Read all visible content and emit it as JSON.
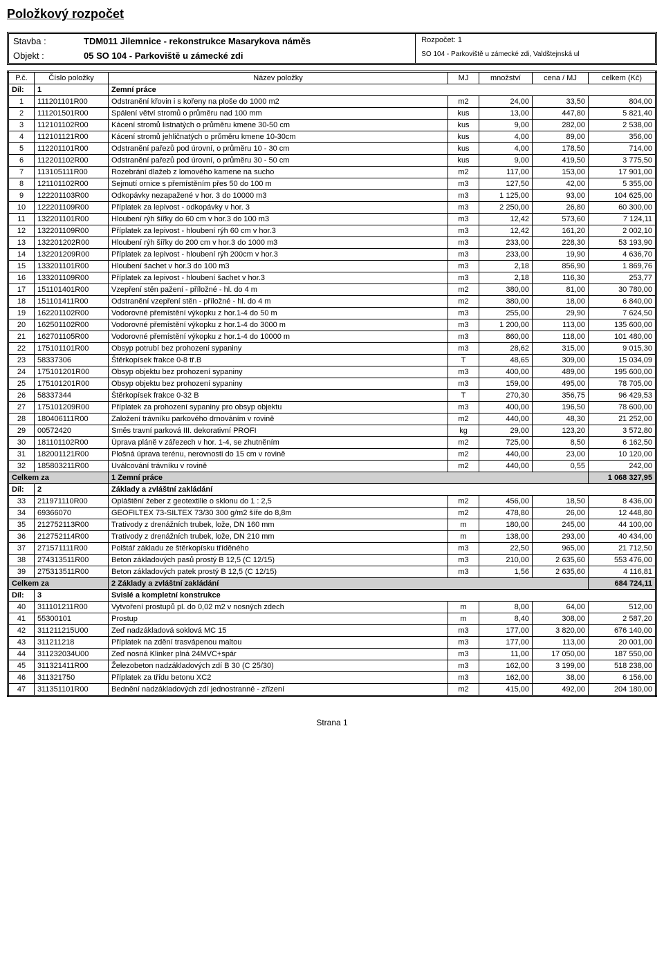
{
  "title": "Položkový rozpočet",
  "header": {
    "stavba_label": "Stavba :",
    "stavba_value": "TDM011 Jilemnice - rekonstrukce Masarykova náměs",
    "objekt_label": "Objekt :",
    "objekt_value": "05 SO 104 - Parkoviště u zámecké zdi",
    "rozpocet": "Rozpočet: 1",
    "so_text": "SO 104 - Parkoviště u zámecké zdi, Valdštejnská ul"
  },
  "columns": {
    "pc": "P.č.",
    "cp": "Číslo položky",
    "naz": "Název položky",
    "mj": "MJ",
    "mn": "množství",
    "cena": "cena / MJ",
    "cel": "celkem (Kč)"
  },
  "sections": [
    {
      "dil": "1",
      "dil_label": "Díl:",
      "name": "Zemní práce",
      "items": [
        {
          "pc": "1",
          "cp": "111201101R00",
          "naz": "Odstranění křovin i s kořeny na ploše do 1000 m2",
          "mj": "m2",
          "mn": "24,00",
          "cena": "33,50",
          "cel": "804,00"
        },
        {
          "pc": "2",
          "cp": "111201501R00",
          "naz": "Spálení větví stromů o průměru nad 100 mm",
          "mj": "kus",
          "mn": "13,00",
          "cena": "447,80",
          "cel": "5 821,40"
        },
        {
          "pc": "3",
          "cp": "112101102R00",
          "naz": "Kácení stromů listnatých o průměru kmene 30-50 cm",
          "mj": "kus",
          "mn": "9,00",
          "cena": "282,00",
          "cel": "2 538,00"
        },
        {
          "pc": "4",
          "cp": "112101121R00",
          "naz": "Kácení stromů jehličnatých o průměru kmene 10-30cm",
          "mj": "kus",
          "mn": "4,00",
          "cena": "89,00",
          "cel": "356,00"
        },
        {
          "pc": "5",
          "cp": "112201101R00",
          "naz": "Odstranění pařezů pod úrovní, o průměru 10 - 30 cm",
          "mj": "kus",
          "mn": "4,00",
          "cena": "178,50",
          "cel": "714,00"
        },
        {
          "pc": "6",
          "cp": "112201102R00",
          "naz": "Odstranění pařezů pod úrovní, o průměru 30 - 50 cm",
          "mj": "kus",
          "mn": "9,00",
          "cena": "419,50",
          "cel": "3 775,50"
        },
        {
          "pc": "7",
          "cp": "113105111R00",
          "naz": "Rozebrání dlažeb z lomového kamene na sucho",
          "mj": "m2",
          "mn": "117,00",
          "cena": "153,00",
          "cel": "17 901,00"
        },
        {
          "pc": "8",
          "cp": "121101102R00",
          "naz": "Sejmutí ornice s přemístěním přes 50 do 100 m",
          "mj": "m3",
          "mn": "127,50",
          "cena": "42,00",
          "cel": "5 355,00"
        },
        {
          "pc": "9",
          "cp": "122201103R00",
          "naz": "Odkopávky nezapažené v hor. 3 do 10000 m3",
          "mj": "m3",
          "mn": "1 125,00",
          "cena": "93,00",
          "cel": "104 625,00"
        },
        {
          "pc": "10",
          "cp": "122201109R00",
          "naz": "Příplatek za lepivost - odkopávky v hor. 3",
          "mj": "m3",
          "mn": "2 250,00",
          "cena": "26,80",
          "cel": "60 300,00"
        },
        {
          "pc": "11",
          "cp": "132201101R00",
          "naz": "Hloubení rýh šířky do 60 cm v hor.3 do 100 m3",
          "mj": "m3",
          "mn": "12,42",
          "cena": "573,60",
          "cel": "7 124,11"
        },
        {
          "pc": "12",
          "cp": "132201109R00",
          "naz": "Příplatek za lepivost - hloubení rýh 60 cm v hor.3",
          "mj": "m3",
          "mn": "12,42",
          "cena": "161,20",
          "cel": "2 002,10"
        },
        {
          "pc": "13",
          "cp": "132201202R00",
          "naz": "Hloubení rýh šířky do 200 cm v hor.3 do 1000 m3",
          "mj": "m3",
          "mn": "233,00",
          "cena": "228,30",
          "cel": "53 193,90"
        },
        {
          "pc": "14",
          "cp": "132201209R00",
          "naz": "Příplatek za lepivost - hloubení rýh 200cm v hor.3",
          "mj": "m3",
          "mn": "233,00",
          "cena": "19,90",
          "cel": "4 636,70"
        },
        {
          "pc": "15",
          "cp": "133201101R00",
          "naz": "Hloubení šachet v hor.3 do 100 m3",
          "mj": "m3",
          "mn": "2,18",
          "cena": "856,90",
          "cel": "1 869,76"
        },
        {
          "pc": "16",
          "cp": "133201109R00",
          "naz": "Příplatek za lepivost - hloubení šachet v hor.3",
          "mj": "m3",
          "mn": "2,18",
          "cena": "116,30",
          "cel": "253,77"
        },
        {
          "pc": "17",
          "cp": "151101401R00",
          "naz": "Vzepření stěn pažení - příložné - hl. do 4 m",
          "mj": "m2",
          "mn": "380,00",
          "cena": "81,00",
          "cel": "30 780,00"
        },
        {
          "pc": "18",
          "cp": "151101411R00",
          "naz": "Odstranění vzepření stěn - příložné - hl. do 4 m",
          "mj": "m2",
          "mn": "380,00",
          "cena": "18,00",
          "cel": "6 840,00"
        },
        {
          "pc": "19",
          "cp": "162201102R00",
          "naz": "Vodorovné přemístění výkopku z hor.1-4 do 50 m",
          "mj": "m3",
          "mn": "255,00",
          "cena": "29,90",
          "cel": "7 624,50"
        },
        {
          "pc": "20",
          "cp": "162501102R00",
          "naz": "Vodorovné přemístění výkopku z hor.1-4 do 3000 m",
          "mj": "m3",
          "mn": "1 200,00",
          "cena": "113,00",
          "cel": "135 600,00"
        },
        {
          "pc": "21",
          "cp": "162701105R00",
          "naz": "Vodorovné přemístění výkopku z hor.1-4 do 10000 m",
          "mj": "m3",
          "mn": "860,00",
          "cena": "118,00",
          "cel": "101 480,00"
        },
        {
          "pc": "22",
          "cp": "175101101R00",
          "naz": "Obsyp potrubí bez prohození sypaniny",
          "mj": "m3",
          "mn": "28,62",
          "cena": "315,00",
          "cel": "9 015,30"
        },
        {
          "pc": "23",
          "cp": "58337306",
          "naz": "Štěrkopísek frakce 0-8 tř.B",
          "mj": "T",
          "mn": "48,65",
          "cena": "309,00",
          "cel": "15 034,09"
        },
        {
          "pc": "24",
          "cp": "175101201R00",
          "naz": "Obsyp objektu bez prohození sypaniny",
          "mj": "m3",
          "mn": "400,00",
          "cena": "489,00",
          "cel": "195 600,00"
        },
        {
          "pc": "25",
          "cp": "175101201R00",
          "naz": "Obsyp objektu bez prohození sypaniny",
          "mj": "m3",
          "mn": "159,00",
          "cena": "495,00",
          "cel": "78 705,00"
        },
        {
          "pc": "26",
          "cp": "58337344",
          "naz": "Štěrkopísek frakce 0-32 B",
          "mj": "T",
          "mn": "270,30",
          "cena": "356,75",
          "cel": "96 429,53"
        },
        {
          "pc": "27",
          "cp": "175101209R00",
          "naz": "Příplatek za prohození sypaniny pro obsyp objektu",
          "mj": "m3",
          "mn": "400,00",
          "cena": "196,50",
          "cel": "78 600,00"
        },
        {
          "pc": "28",
          "cp": "180406111R00",
          "naz": "Založení trávníku parkového drnováním v rovině",
          "mj": "m2",
          "mn": "440,00",
          "cena": "48,30",
          "cel": "21 252,00"
        },
        {
          "pc": "29",
          "cp": "00572420",
          "naz": "Směs travní parková III. dekorativní PROFI",
          "mj": "kg",
          "mn": "29,00",
          "cena": "123,20",
          "cel": "3 572,80"
        },
        {
          "pc": "30",
          "cp": "181101102R00",
          "naz": "Úprava pláně v zářezech v hor. 1-4, se zhutněním",
          "mj": "m2",
          "mn": "725,00",
          "cena": "8,50",
          "cel": "6 162,50"
        },
        {
          "pc": "31",
          "cp": "182001121R00",
          "naz": "Plošná úprava terénu, nerovnosti do 15 cm v rovině",
          "mj": "m2",
          "mn": "440,00",
          "cena": "23,00",
          "cel": "10 120,00"
        },
        {
          "pc": "32",
          "cp": "185803211R00",
          "naz": "Uválcování trávníku v rovině",
          "mj": "m2",
          "mn": "440,00",
          "cena": "0,55",
          "cel": "242,00"
        }
      ],
      "subtotal_label": "Celkem za",
      "subtotal_name": "1 Zemní práce",
      "subtotal": "1 068 327,95"
    },
    {
      "dil": "2",
      "dil_label": "Díl:",
      "name": "Základy a zvláštní zakládání",
      "items": [
        {
          "pc": "33",
          "cp": "211971110R00",
          "naz": "Opláštění žeber z geotextilie o sklonu do 1 : 2,5",
          "mj": "m2",
          "mn": "456,00",
          "cena": "18,50",
          "cel": "8 436,00"
        },
        {
          "pc": "34",
          "cp": "69366070",
          "naz": "GEOFILTEX 73-SILTEX 73/30 300 g/m2 šíře do 8,8m",
          "mj": "m2",
          "mn": "478,80",
          "cena": "26,00",
          "cel": "12 448,80"
        },
        {
          "pc": "35",
          "cp": "212752113R00",
          "naz": "Trativody z drenážních trubek, lože, DN 160 mm",
          "mj": "m",
          "mn": "180,00",
          "cena": "245,00",
          "cel": "44 100,00"
        },
        {
          "pc": "36",
          "cp": "212752114R00",
          "naz": "Trativody z drenážních trubek, lože, DN 210 mm",
          "mj": "m",
          "mn": "138,00",
          "cena": "293,00",
          "cel": "40 434,00"
        },
        {
          "pc": "37",
          "cp": "271571111R00",
          "naz": "Polštář základu ze štěrkopísku tříděného",
          "mj": "m3",
          "mn": "22,50",
          "cena": "965,00",
          "cel": "21 712,50"
        },
        {
          "pc": "38",
          "cp": "274313511R00",
          "naz": "Beton základových pasů prostý B 12,5 (C 12/15)",
          "mj": "m3",
          "mn": "210,00",
          "cena": "2 635,60",
          "cel": "553 476,00"
        },
        {
          "pc": "39",
          "cp": "275313511R00",
          "naz": "Beton základových patek prostý B 12,5 (C 12/15)",
          "mj": "m3",
          "mn": "1,56",
          "cena": "2 635,60",
          "cel": "4 116,81"
        }
      ],
      "subtotal_label": "Celkem za",
      "subtotal_name": "2 Základy a zvláštní zakládání",
      "subtotal": "684 724,11"
    },
    {
      "dil": "3",
      "dil_label": "Díl:",
      "name": "Svislé a kompletní konstrukce",
      "items": [
        {
          "pc": "40",
          "cp": "311101211R00",
          "naz": "Vytvoření prostupů pl. do 0,02 m2 v nosných zdech",
          "mj": "m",
          "mn": "8,00",
          "cena": "64,00",
          "cel": "512,00"
        },
        {
          "pc": "41",
          "cp": "55300101",
          "naz": "Prostup",
          "mj": "m",
          "mn": "8,40",
          "cena": "308,00",
          "cel": "2 587,20"
        },
        {
          "pc": "42",
          "cp": "311211215U00",
          "naz": "Zeď nadzákladová soklová MC 15",
          "mj": "m3",
          "mn": "177,00",
          "cena": "3 820,00",
          "cel": "676 140,00"
        },
        {
          "pc": "43",
          "cp": "311211218",
          "naz": "Příplatek na zdění trasvápenou maltou",
          "mj": "m3",
          "mn": "177,00",
          "cena": "113,00",
          "cel": "20 001,00"
        },
        {
          "pc": "44",
          "cp": "311232034U00",
          "naz": "Zeď nosná Klinker plná 24MVC+spár",
          "mj": "m3",
          "mn": "11,00",
          "cena": "17 050,00",
          "cel": "187 550,00"
        },
        {
          "pc": "45",
          "cp": "311321411R00",
          "naz": "Železobeton nadzákladových zdí B 30 (C 25/30)",
          "mj": "m3",
          "mn": "162,00",
          "cena": "3 199,00",
          "cel": "518 238,00"
        },
        {
          "pc": "46",
          "cp": "311321750",
          "naz": "Příplatek za třídu betonu XC2",
          "mj": "m3",
          "mn": "162,00",
          "cena": "38,00",
          "cel": "6 156,00"
        },
        {
          "pc": "47",
          "cp": "311351101R00",
          "naz": "Bednění nadzákladových zdí jednostranné - zřízení",
          "mj": "m2",
          "mn": "415,00",
          "cena": "492,00",
          "cel": "204 180,00"
        }
      ]
    }
  ],
  "footer": "Strana 1"
}
